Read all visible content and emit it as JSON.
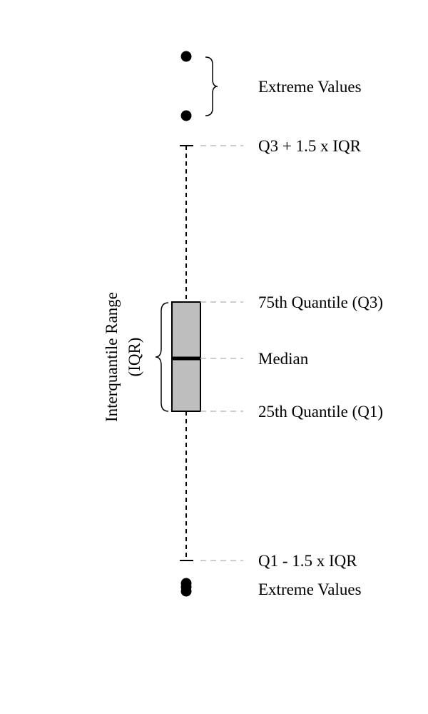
{
  "labels": {
    "extreme_top": "Extreme Values",
    "upper_fence": "Q3 + 1.5 x IQR",
    "q3": "75th Quantile (Q3)",
    "median": "Median",
    "q1": "25th Quantile (Q1)",
    "lower_fence": "Q1 - 1.5 x IQR",
    "extreme_bottom": "Extreme Values",
    "iqr_line1": "Interquantile Range",
    "iqr_line2": "(IQR)"
  },
  "colors": {
    "box_fill": "#bebebe",
    "stroke": "#000000",
    "guide": "#bebebe"
  }
}
